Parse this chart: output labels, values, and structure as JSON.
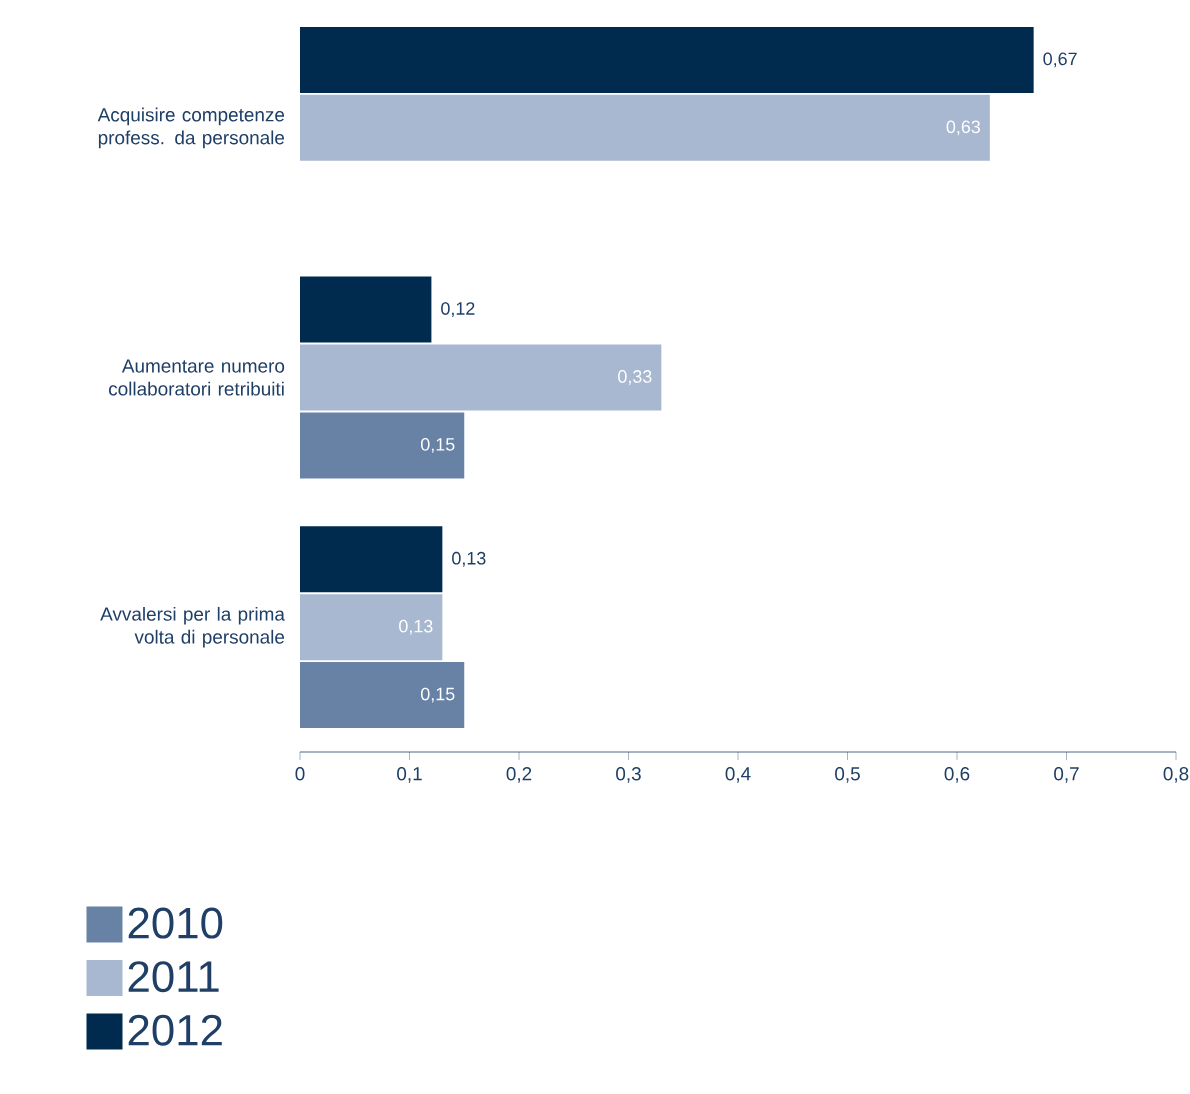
{
  "chart_data": {
    "type": "bar",
    "orientation": "horizontal",
    "categories": [
      "Acquisire competenze profess. da personale",
      "Aumentare numero collaboratori retribuiti",
      "Avvalersi per la prima volta di personale"
    ],
    "series": [
      {
        "name": "2010",
        "color": "#6882a6",
        "values": [
          null,
          0.15,
          0.15
        ],
        "value_labels": [
          null,
          "0,15",
          "0,15"
        ]
      },
      {
        "name": "2011",
        "color": "#a9b8d1",
        "values": [
          0.63,
          0.33,
          0.13
        ],
        "value_labels": [
          "0,63",
          "0,33",
          "0,13"
        ]
      },
      {
        "name": "2012",
        "color": "#002a4e",
        "values": [
          0.67,
          0.12,
          0.13
        ],
        "value_labels": [
          "0,67",
          "0,12",
          "0,13"
        ]
      }
    ],
    "xlim": [
      0,
      0.8
    ],
    "xticks": [
      {
        "value": 0,
        "label": "0"
      },
      {
        "value": 0.1,
        "label": "0,1"
      },
      {
        "value": 0.2,
        "label": "0,2"
      },
      {
        "value": 0.3,
        "label": "0,3"
      },
      {
        "value": 0.4,
        "label": "0,4"
      },
      {
        "value": 0.5,
        "label": "0,5"
      },
      {
        "value": 0.6,
        "label": "0,6"
      },
      {
        "value": 0.7,
        "label": "0,7"
      },
      {
        "value": 0.8,
        "label": "0,8"
      }
    ],
    "legend": "bottom left",
    "grid": false
  }
}
